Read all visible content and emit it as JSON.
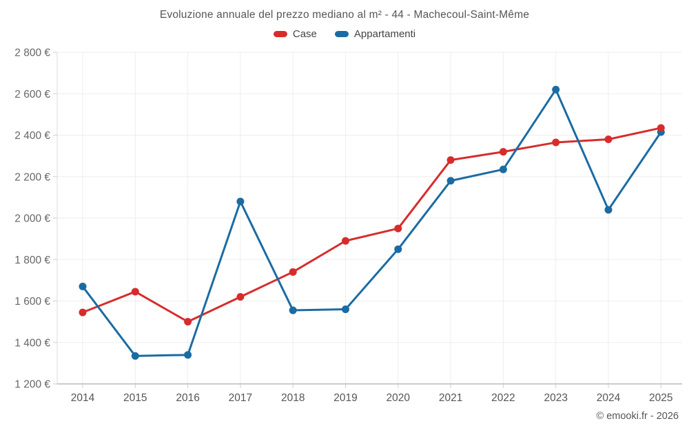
{
  "header": {
    "title": "Evoluzione annuale del prezzo mediano al m² - 44 - Machecoul-Saint-Même"
  },
  "legend": {
    "items": [
      {
        "label": "Case",
        "color": "#d72c2c"
      },
      {
        "label": "Appartamenti",
        "color": "#1b6ba3"
      }
    ]
  },
  "footer": {
    "credit": "© emooki.fr - 2026"
  },
  "colors": {
    "case": "#d72c2c",
    "appartamenti": "#1b6ba3",
    "grid": "#ededed",
    "y_axis_line": "#dddddd",
    "x_axis_line": "#999999",
    "tick": "#cccccc",
    "y_tick_text": "#666666",
    "x_tick_text": "#555555"
  },
  "chart_data": {
    "type": "line",
    "title": "Evoluzione annuale del prezzo mediano al m² - 44 - Machecoul-Saint-Même",
    "x": [
      2014,
      2015,
      2016,
      2017,
      2018,
      2019,
      2020,
      2021,
      2022,
      2023,
      2024,
      2025
    ],
    "series": [
      {
        "name": "Case",
        "color": "#d72c2c",
        "values": [
          1545,
          1645,
          1500,
          1620,
          1740,
          1890,
          1950,
          2280,
          2320,
          2365,
          2380,
          2435
        ]
      },
      {
        "name": "Appartamenti",
        "color": "#1b6ba3",
        "values": [
          1670,
          1335,
          1340,
          2080,
          1555,
          1560,
          1850,
          2180,
          2235,
          2620,
          2040,
          2415
        ]
      }
    ],
    "xlabel": "",
    "ylabel": "",
    "ylim": [
      1200,
      2800
    ],
    "ytick_step": 200,
    "ytick_labels": [
      "1 200 €",
      "1 400 €",
      "1 600 €",
      "1 800 €",
      "2 000 €",
      "2 200 €",
      "2 400 €",
      "2 600 €",
      "2 800 €"
    ],
    "grid": true,
    "legend_position": "top"
  }
}
